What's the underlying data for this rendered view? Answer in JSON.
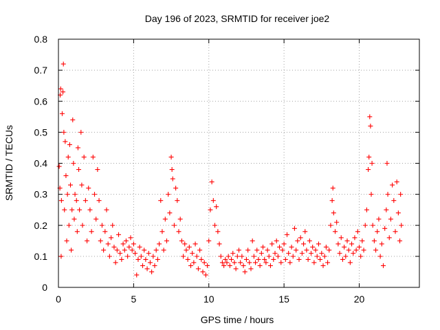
{
  "chart_data": {
    "type": "scatter",
    "title": "Day 196 of 2023, SRMTID for receiver joe2",
    "xlabel": "GPS time / hours",
    "ylabel": "SRMTID / TECUs",
    "xlim": [
      0,
      24
    ],
    "ylim": [
      0,
      0.8
    ],
    "x_ticks": [
      0,
      5,
      10,
      15,
      20
    ],
    "x_tick_labels": [
      "0",
      "5",
      "10",
      "15",
      "20"
    ],
    "y_ticks": [
      0,
      0.1,
      0.2,
      0.3,
      0.4,
      0.5,
      0.6,
      0.7,
      0.8
    ],
    "y_tick_labels": [
      "0",
      "0.1",
      "0.2",
      "0.3",
      "0.4",
      "0.5",
      "0.6",
      "0.7",
      "0.8"
    ],
    "grid": true,
    "marker": "+",
    "series": [
      {
        "name": "SRMTID",
        "color": "#ff0000",
        "points": [
          [
            0.05,
            0.39
          ],
          [
            0.1,
            0.32
          ],
          [
            0.12,
            0.62
          ],
          [
            0.15,
            0.64
          ],
          [
            0.18,
            0.1
          ],
          [
            0.2,
            0.28
          ],
          [
            0.25,
            0.56
          ],
          [
            0.3,
            0.63
          ],
          [
            0.33,
            0.72
          ],
          [
            0.36,
            0.5
          ],
          [
            0.4,
            0.25
          ],
          [
            0.45,
            0.47
          ],
          [
            0.5,
            0.36
          ],
          [
            0.55,
            0.15
          ],
          [
            0.6,
            0.3
          ],
          [
            0.65,
            0.42
          ],
          [
            0.7,
            0.2
          ],
          [
            0.75,
            0.46
          ],
          [
            0.8,
            0.33
          ],
          [
            0.85,
            0.12
          ],
          [
            0.9,
            0.25
          ],
          [
            0.95,
            0.54
          ],
          [
            1.0,
            0.4
          ],
          [
            1.05,
            0.22
          ],
          [
            1.1,
            0.3
          ],
          [
            1.2,
            0.28
          ],
          [
            1.25,
            0.18
          ],
          [
            1.3,
            0.45
          ],
          [
            1.35,
            0.38
          ],
          [
            1.4,
            0.25
          ],
          [
            1.5,
            0.5
          ],
          [
            1.55,
            0.33
          ],
          [
            1.6,
            0.2
          ],
          [
            1.7,
            0.42
          ],
          [
            1.8,
            0.28
          ],
          [
            1.9,
            0.15
          ],
          [
            2.0,
            0.32
          ],
          [
            2.1,
            0.25
          ],
          [
            2.2,
            0.18
          ],
          [
            2.3,
            0.42
          ],
          [
            2.4,
            0.3
          ],
          [
            2.5,
            0.22
          ],
          [
            2.6,
            0.38
          ],
          [
            2.7,
            0.28
          ],
          [
            2.8,
            0.15
          ],
          [
            2.9,
            0.2
          ],
          [
            3.0,
            0.12
          ],
          [
            3.1,
            0.18
          ],
          [
            3.2,
            0.25
          ],
          [
            3.3,
            0.14
          ],
          [
            3.4,
            0.1
          ],
          [
            3.5,
            0.16
          ],
          [
            3.6,
            0.2
          ],
          [
            3.7,
            0.13
          ],
          [
            3.8,
            0.08
          ],
          [
            3.9,
            0.12
          ],
          [
            4.0,
            0.17
          ],
          [
            4.1,
            0.11
          ],
          [
            4.2,
            0.09
          ],
          [
            4.3,
            0.14
          ],
          [
            4.4,
            0.12
          ],
          [
            4.5,
            0.15
          ],
          [
            4.6,
            0.1
          ],
          [
            4.7,
            0.13
          ],
          [
            4.8,
            0.16
          ],
          [
            4.9,
            0.12
          ],
          [
            5.0,
            0.14
          ],
          [
            5.1,
            0.11
          ],
          [
            5.2,
            0.04
          ],
          [
            5.3,
            0.09
          ],
          [
            5.4,
            0.13
          ],
          [
            5.5,
            0.1
          ],
          [
            5.6,
            0.07
          ],
          [
            5.7,
            0.12
          ],
          [
            5.8,
            0.09
          ],
          [
            5.9,
            0.06
          ],
          [
            6.0,
            0.11
          ],
          [
            6.1,
            0.08
          ],
          [
            6.2,
            0.05
          ],
          [
            6.3,
            0.1
          ],
          [
            6.4,
            0.07
          ],
          [
            6.5,
            0.12
          ],
          [
            6.6,
            0.09
          ],
          [
            6.7,
            0.14
          ],
          [
            6.8,
            0.28
          ],
          [
            6.9,
            0.18
          ],
          [
            7.0,
            0.12
          ],
          [
            7.1,
            0.22
          ],
          [
            7.2,
            0.15
          ],
          [
            7.3,
            0.3
          ],
          [
            7.4,
            0.24
          ],
          [
            7.5,
            0.42
          ],
          [
            7.55,
            0.38
          ],
          [
            7.6,
            0.35
          ],
          [
            7.7,
            0.2
          ],
          [
            7.8,
            0.32
          ],
          [
            7.9,
            0.28
          ],
          [
            8.0,
            0.18
          ],
          [
            8.1,
            0.22
          ],
          [
            8.2,
            0.15
          ],
          [
            8.3,
            0.1
          ],
          [
            8.4,
            0.14
          ],
          [
            8.5,
            0.12
          ],
          [
            8.6,
            0.09
          ],
          [
            8.7,
            0.13
          ],
          [
            8.8,
            0.07
          ],
          [
            8.9,
            0.11
          ],
          [
            9.0,
            0.08
          ],
          [
            9.1,
            0.14
          ],
          [
            9.2,
            0.1
          ],
          [
            9.3,
            0.06
          ],
          [
            9.4,
            0.12
          ],
          [
            9.5,
            0.09
          ],
          [
            9.6,
            0.05
          ],
          [
            9.7,
            0.08
          ],
          [
            9.8,
            0.04
          ],
          [
            9.9,
            0.07
          ],
          [
            10.0,
            0.15
          ],
          [
            10.1,
            0.25
          ],
          [
            10.2,
            0.34
          ],
          [
            10.3,
            0.28
          ],
          [
            10.4,
            0.2
          ],
          [
            10.5,
            0.26
          ],
          [
            10.6,
            0.18
          ],
          [
            10.7,
            0.14
          ],
          [
            10.8,
            0.1
          ],
          [
            10.9,
            0.08
          ],
          [
            11.0,
            0.07
          ],
          [
            11.1,
            0.09
          ],
          [
            11.2,
            0.08
          ],
          [
            11.3,
            0.1
          ],
          [
            11.4,
            0.07
          ],
          [
            11.5,
            0.09
          ],
          [
            11.6,
            0.11
          ],
          [
            11.7,
            0.08
          ],
          [
            11.8,
            0.06
          ],
          [
            11.9,
            0.1
          ],
          [
            12.0,
            0.12
          ],
          [
            12.1,
            0.08
          ],
          [
            12.2,
            0.1
          ],
          [
            12.3,
            0.07
          ],
          [
            12.4,
            0.05
          ],
          [
            12.5,
            0.09
          ],
          [
            12.6,
            0.12
          ],
          [
            12.7,
            0.08
          ],
          [
            12.8,
            0.06
          ],
          [
            12.9,
            0.15
          ],
          [
            13.0,
            0.1
          ],
          [
            13.1,
            0.08
          ],
          [
            13.2,
            0.12
          ],
          [
            13.3,
            0.09
          ],
          [
            13.4,
            0.07
          ],
          [
            13.5,
            0.11
          ],
          [
            13.6,
            0.13
          ],
          [
            13.7,
            0.09
          ],
          [
            13.8,
            0.08
          ],
          [
            13.9,
            0.12
          ],
          [
            14.0,
            0.1
          ],
          [
            14.1,
            0.07
          ],
          [
            14.2,
            0.14
          ],
          [
            14.3,
            0.09
          ],
          [
            14.4,
            0.11
          ],
          [
            14.5,
            0.15
          ],
          [
            14.6,
            0.1
          ],
          [
            14.7,
            0.13
          ],
          [
            14.8,
            0.08
          ],
          [
            14.9,
            0.12
          ],
          [
            15.0,
            0.14
          ],
          [
            15.1,
            0.09
          ],
          [
            15.2,
            0.17
          ],
          [
            15.3,
            0.11
          ],
          [
            15.4,
            0.08
          ],
          [
            15.5,
            0.13
          ],
          [
            15.6,
            0.1
          ],
          [
            15.7,
            0.19
          ],
          [
            15.8,
            0.12
          ],
          [
            15.9,
            0.15
          ],
          [
            16.0,
            0.09
          ],
          [
            16.1,
            0.16
          ],
          [
            16.2,
            0.11
          ],
          [
            16.3,
            0.14
          ],
          [
            16.4,
            0.18
          ],
          [
            16.5,
            0.12
          ],
          [
            16.6,
            0.09
          ],
          [
            16.7,
            0.15
          ],
          [
            16.8,
            0.11
          ],
          [
            16.9,
            0.13
          ],
          [
            17.0,
            0.08
          ],
          [
            17.1,
            0.12
          ],
          [
            17.2,
            0.1
          ],
          [
            17.3,
            0.14
          ],
          [
            17.4,
            0.09
          ],
          [
            17.5,
            0.11
          ],
          [
            17.6,
            0.07
          ],
          [
            17.7,
            0.1
          ],
          [
            17.8,
            0.13
          ],
          [
            17.9,
            0.08
          ],
          [
            18.0,
            0.12
          ],
          [
            18.1,
            0.2
          ],
          [
            18.2,
            0.28
          ],
          [
            18.25,
            0.32
          ],
          [
            18.3,
            0.24
          ],
          [
            18.4,
            0.18
          ],
          [
            18.5,
            0.21
          ],
          [
            18.6,
            0.14
          ],
          [
            18.7,
            0.11
          ],
          [
            18.8,
            0.16
          ],
          [
            18.9,
            0.09
          ],
          [
            19.0,
            0.13
          ],
          [
            19.1,
            0.1
          ],
          [
            19.2,
            0.15
          ],
          [
            19.3,
            0.12
          ],
          [
            19.4,
            0.08
          ],
          [
            19.5,
            0.14
          ],
          [
            19.6,
            0.11
          ],
          [
            19.7,
            0.16
          ],
          [
            19.8,
            0.12
          ],
          [
            19.9,
            0.18
          ],
          [
            20.0,
            0.13
          ],
          [
            20.1,
            0.1
          ],
          [
            20.2,
            0.15
          ],
          [
            20.3,
            0.12
          ],
          [
            20.4,
            0.2
          ],
          [
            20.5,
            0.25
          ],
          [
            20.6,
            0.38
          ],
          [
            20.65,
            0.42
          ],
          [
            20.7,
            0.55
          ],
          [
            20.75,
            0.52
          ],
          [
            20.8,
            0.3
          ],
          [
            20.85,
            0.4
          ],
          [
            20.9,
            0.2
          ],
          [
            21.0,
            0.15
          ],
          [
            21.1,
            0.12
          ],
          [
            21.2,
            0.18
          ],
          [
            21.3,
            0.22
          ],
          [
            21.4,
            0.1
          ],
          [
            21.5,
            0.14
          ],
          [
            21.6,
            0.07
          ],
          [
            21.7,
            0.19
          ],
          [
            21.8,
            0.25
          ],
          [
            21.85,
            0.4
          ],
          [
            21.9,
            0.3
          ],
          [
            22.0,
            0.16
          ],
          [
            22.1,
            0.22
          ],
          [
            22.2,
            0.33
          ],
          [
            22.3,
            0.28
          ],
          [
            22.4,
            0.18
          ],
          [
            22.5,
            0.34
          ],
          [
            22.6,
            0.24
          ],
          [
            22.7,
            0.15
          ],
          [
            22.75,
            0.3
          ],
          [
            22.8,
            0.2
          ]
        ]
      }
    ]
  }
}
